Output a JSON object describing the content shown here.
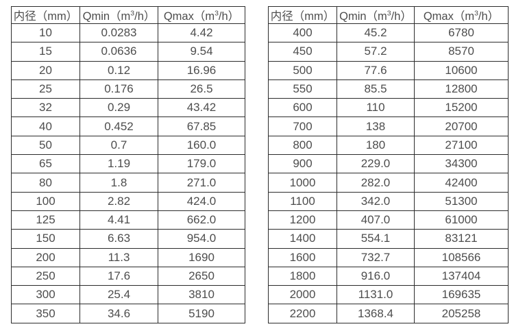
{
  "page": {
    "background_color": "#ffffff",
    "border_color": "#2b2b2b",
    "text_color": "#4d4d4d"
  },
  "tables": [
    {
      "name": "flow-table-small-diameters",
      "headers": [
        {
          "pre": "内径（mm）",
          "sup": "",
          "post": ""
        },
        {
          "pre": "Qmin（m",
          "sup": "3",
          "post": "/h）"
        },
        {
          "pre": "Qmax（m",
          "sup": "3",
          "post": "/h）"
        }
      ],
      "rows": [
        [
          "10",
          "0.0283",
          "4.42"
        ],
        [
          "15",
          "0.0636",
          "9.54"
        ],
        [
          "20",
          "0.12",
          "16.96"
        ],
        [
          "25",
          "0.176",
          "26.5"
        ],
        [
          "32",
          "0.29",
          "43.42"
        ],
        [
          "40",
          "0.452",
          "67.85"
        ],
        [
          "50",
          "0.7",
          "160.0"
        ],
        [
          "65",
          "1.19",
          "179.0"
        ],
        [
          "80",
          "1.8",
          "271.0"
        ],
        [
          "100",
          "2.82",
          "424.0"
        ],
        [
          "125",
          "4.41",
          "662.0"
        ],
        [
          "150",
          "6.63",
          "954.0"
        ],
        [
          "200",
          "11.3",
          "1690"
        ],
        [
          "250",
          "17.6",
          "2650"
        ],
        [
          "300",
          "25.4",
          "3810"
        ],
        [
          "350",
          "34.6",
          "5190"
        ]
      ]
    },
    {
      "name": "flow-table-large-diameters",
      "headers": [
        {
          "pre": "内径（mm）",
          "sup": "",
          "post": ""
        },
        {
          "pre": "Qmin（m",
          "sup": "3",
          "post": "/h）"
        },
        {
          "pre": "Qmax（m",
          "sup": "3",
          "post": "/h）"
        }
      ],
      "rows": [
        [
          "400",
          "45.2",
          "6780"
        ],
        [
          "450",
          "57.2",
          "8570"
        ],
        [
          "500",
          "77.6",
          "10600"
        ],
        [
          "550",
          "85.5",
          "12800"
        ],
        [
          "600",
          "110",
          "15200"
        ],
        [
          "700",
          "138",
          "20700"
        ],
        [
          "800",
          "180",
          "27100"
        ],
        [
          "900",
          "229.0",
          "34300"
        ],
        [
          "1000",
          "282.0",
          "42400"
        ],
        [
          "1100",
          "342.0",
          "51300"
        ],
        [
          "1200",
          "407.0",
          "61000"
        ],
        [
          "1400",
          "554.1",
          "83121"
        ],
        [
          "1600",
          "732.7",
          "108566"
        ],
        [
          "1800",
          "916.0",
          "137404"
        ],
        [
          "2000",
          "1131.0",
          "169635"
        ],
        [
          "2200",
          "1368.4",
          "205258"
        ]
      ]
    }
  ]
}
